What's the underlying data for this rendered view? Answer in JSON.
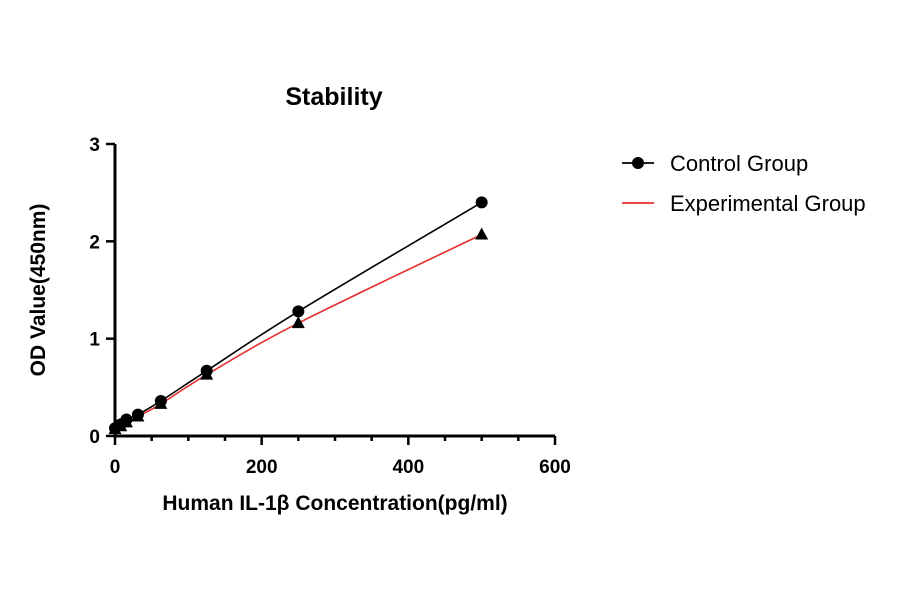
{
  "chart_data": {
    "type": "scatter",
    "title": "Stability",
    "xlabel": "Human IL-1β Concentration(pg/ml)",
    "ylabel": "OD Value(450nm)",
    "xlim": [
      0,
      600
    ],
    "ylim": [
      0,
      3
    ],
    "xticks": [
      0,
      200,
      400,
      600
    ],
    "yticks": [
      0,
      1,
      2,
      3
    ],
    "grid": false,
    "legend_position": "top-right",
    "series": [
      {
        "name": "Control Group",
        "marker": "circle",
        "color": "#000000",
        "line_color": "#000000",
        "x": [
          0,
          7.8,
          15.6,
          31.25,
          62.5,
          125,
          250,
          500
        ],
        "y": [
          0.08,
          0.12,
          0.17,
          0.22,
          0.36,
          0.67,
          1.28,
          2.4
        ]
      },
      {
        "name": "Experimental Group",
        "marker": "triangle",
        "color": "#000000",
        "line_color": "#e53030",
        "x": [
          0,
          7.8,
          15.6,
          31.25,
          62.5,
          125,
          250,
          500
        ],
        "y": [
          0.07,
          0.1,
          0.14,
          0.2,
          0.33,
          0.63,
          1.16,
          2.07
        ]
      }
    ]
  }
}
